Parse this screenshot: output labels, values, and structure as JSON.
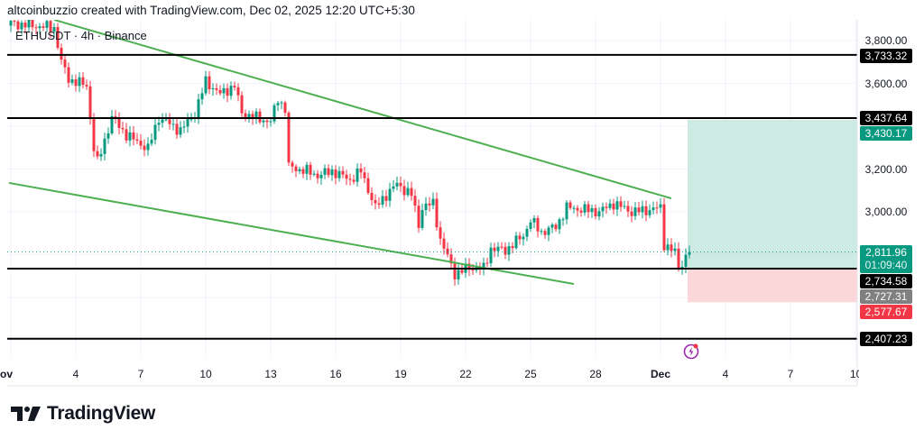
{
  "header": {
    "text": "altcoinbuzzio created with TradingView.com, Dec 02, 2025 12:20 UTC+5:30"
  },
  "legend": {
    "text": "ETHUSDT · 4h · Binance"
  },
  "logo": {
    "text": "TradingView"
  },
  "colors": {
    "up": "#089981",
    "down": "#f23645",
    "trendline": "#4caf50",
    "level": "#000000",
    "profit_zone": "#cdeae3",
    "loss_zone": "#fbd7da",
    "event": "#9c27b0"
  },
  "chart_data": {
    "type": "candlestick",
    "title": "ETHUSDT · 4h · Binance",
    "interval": "4h",
    "ylim": [
      2330,
      3900
    ],
    "y_ticks": [
      {
        "value": 3800,
        "label": "3,800.00"
      },
      {
        "value": 3600,
        "label": "3,600.00"
      },
      {
        "value": 3200,
        "label": "3,200.00"
      },
      {
        "value": 3000,
        "label": "3,000.00"
      }
    ],
    "grid_values": [
      3800,
      3600,
      3400,
      3200,
      3000,
      2800,
      2600,
      2400
    ],
    "x_ticks": [
      {
        "candle": 0,
        "label": "Nov"
      },
      {
        "candle": 18,
        "label": "4"
      },
      {
        "candle": 36,
        "label": "7"
      },
      {
        "candle": 54,
        "label": "10"
      },
      {
        "candle": 72,
        "label": "13"
      },
      {
        "candle": 90,
        "label": "16"
      },
      {
        "candle": 108,
        "label": "19"
      },
      {
        "candle": 126,
        "label": "22"
      },
      {
        "candle": 144,
        "label": "25"
      },
      {
        "candle": 162,
        "label": "28"
      },
      {
        "candle": 180,
        "label": "Dec"
      },
      {
        "candle": 198,
        "label": "4"
      },
      {
        "candle": 216,
        "label": "7"
      },
      {
        "candle": 234,
        "label": "10"
      }
    ],
    "close_keypoints": [
      [
        0,
        3880
      ],
      [
        12,
        3860
      ],
      [
        14,
        3700
      ],
      [
        16,
        3620
      ],
      [
        21,
        3590
      ],
      [
        23,
        3295
      ],
      [
        24,
        3230
      ],
      [
        28,
        3440
      ],
      [
        32,
        3360
      ],
      [
        38,
        3295
      ],
      [
        41,
        3440
      ],
      [
        47,
        3380
      ],
      [
        51,
        3460
      ],
      [
        54,
        3610
      ],
      [
        58,
        3550
      ],
      [
        62,
        3590
      ],
      [
        64,
        3460
      ],
      [
        68,
        3440
      ],
      [
        72,
        3420
      ],
      [
        74,
        3530
      ],
      [
        76,
        3480
      ],
      [
        77,
        3210
      ],
      [
        82,
        3190
      ],
      [
        85,
        3170
      ],
      [
        89,
        3190
      ],
      [
        94,
        3150
      ],
      [
        97,
        3190
      ],
      [
        101,
        3020
      ],
      [
        104,
        3080
      ],
      [
        107,
        3130
      ],
      [
        111,
        3080
      ],
      [
        113,
        2940
      ],
      [
        114,
        3020
      ],
      [
        117,
        3040
      ],
      [
        119,
        2870
      ],
      [
        122,
        2750
      ],
      [
        123,
        2710
      ],
      [
        127,
        2740
      ],
      [
        131,
        2735
      ],
      [
        133,
        2830
      ],
      [
        137,
        2820
      ],
      [
        142,
        2890
      ],
      [
        144,
        2960
      ],
      [
        147,
        2905
      ],
      [
        151,
        2930
      ],
      [
        154,
        3020
      ],
      [
        159,
        3010
      ],
      [
        163,
        3000
      ],
      [
        167,
        3040
      ],
      [
        172,
        3000
      ],
      [
        177,
        3010
      ],
      [
        180,
        3020
      ],
      [
        181,
        2850
      ],
      [
        184,
        2810
      ],
      [
        185,
        2735
      ],
      [
        187,
        2790
      ],
      [
        188,
        2811.96
      ]
    ],
    "levels": [
      {
        "value": 3733.32,
        "label": "3,733.32"
      },
      {
        "value": 3437.64,
        "label": "3,437.64"
      },
      {
        "value": 2734.58,
        "label": "2,734.58"
      },
      {
        "value": 2407.23,
        "label": "2,407.23"
      }
    ],
    "trendlines": [
      {
        "name": "upper",
        "from": [
          12,
          3897
        ],
        "to": [
          183,
          3063
        ]
      },
      {
        "name": "lower",
        "from": [
          -0.5,
          3135
        ],
        "to": [
          156,
          2663
        ]
      }
    ],
    "long_position": {
      "start_candle": 187.5,
      "take_profit": 3430.17,
      "take_profit_label": "3,430.17",
      "entry": 2727.31,
      "entry_label": "2,727.31",
      "stop_loss": 2577.67,
      "stop_loss_label": "2,577.67"
    },
    "last_price": {
      "value": 2811.96,
      "label": "2,811.96",
      "countdown": "01:09:40"
    }
  }
}
